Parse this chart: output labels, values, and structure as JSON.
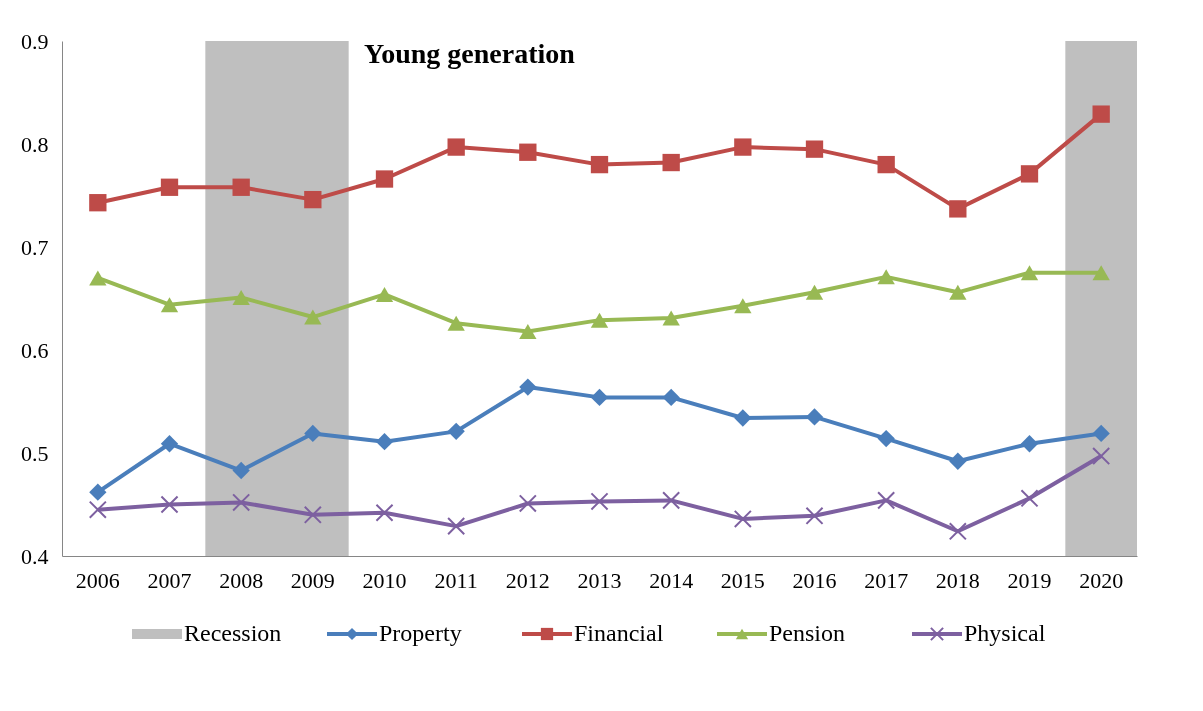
{
  "chart_data": {
    "type": "line",
    "title": "Young generation",
    "categories": [
      "2006",
      "2007",
      "2008",
      "2009",
      "2010",
      "2011",
      "2012",
      "2013",
      "2014",
      "2015",
      "2016",
      "2017",
      "2018",
      "2019",
      "2020"
    ],
    "series": [
      {
        "name": "Property",
        "color": "#4a7ebb",
        "marker": "diamond",
        "values": [
          0.462,
          0.509,
          0.483,
          0.519,
          0.511,
          0.521,
          0.564,
          0.554,
          0.554,
          0.534,
          0.535,
          0.514,
          0.492,
          0.509,
          0.519
        ]
      },
      {
        "name": "Financial",
        "color": "#be4b48",
        "marker": "square",
        "values": [
          0.743,
          0.758,
          0.758,
          0.746,
          0.766,
          0.797,
          0.792,
          0.78,
          0.782,
          0.797,
          0.795,
          0.78,
          0.737,
          0.771,
          0.829
        ]
      },
      {
        "name": "Pension",
        "color": "#98b954",
        "marker": "triangle",
        "values": [
          0.67,
          0.644,
          0.651,
          0.632,
          0.654,
          0.626,
          0.618,
          0.629,
          0.631,
          0.643,
          0.656,
          0.671,
          0.656,
          0.675,
          0.675
        ]
      },
      {
        "name": "Physical",
        "color": "#7d60a0",
        "marker": "cross",
        "values": [
          0.445,
          0.45,
          0.452,
          0.44,
          0.442,
          0.429,
          0.451,
          0.453,
          0.454,
          0.436,
          0.439,
          0.454,
          0.424,
          0.456,
          0.497
        ]
      }
    ],
    "bands": [
      {
        "axis": "x",
        "from": "2008",
        "to": "2009",
        "label": "Recession",
        "color": "#bfbfbf"
      },
      {
        "axis": "x",
        "from": "2020",
        "to": "2020",
        "color": "#bfbfbf"
      }
    ],
    "ylim": [
      0.4,
      0.9
    ],
    "yticks": [
      0.4,
      0.5,
      0.6,
      0.7,
      0.8,
      0.9
    ],
    "grid": false,
    "legend": "bottom",
    "line_style": "solid"
  }
}
